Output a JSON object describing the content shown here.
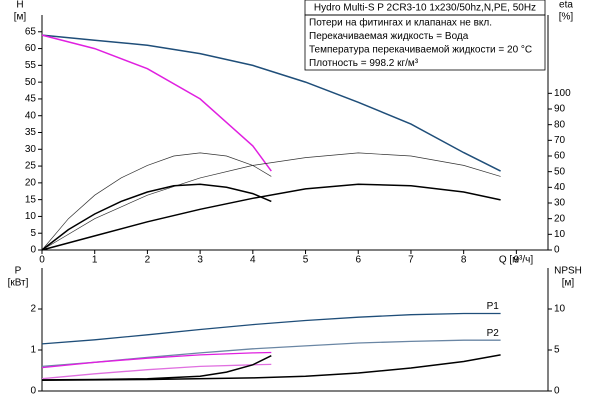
{
  "chart_data": [
    {
      "type": "line",
      "title": "Hydro Multi-S P 2CR3-10 1x230/50hz,N,PE, 50Hz",
      "notes": [
        "Потери на фитингах и клапанах не вкл.",
        "Перекачиваемая жидкость = Вода",
        "Температура перекачиваемой жидкости = 20 °C",
        "Плотность = 998.2 кг/м³"
      ],
      "ylabel": "H",
      "yunit": "[м]",
      "y2label": "eta",
      "y2unit": "[%]",
      "xlabel": "Q [м³/ч]",
      "xlim": [
        0,
        9.6
      ],
      "xticks": [
        0,
        1,
        2,
        3,
        4,
        5,
        6,
        7,
        8,
        9
      ],
      "ylim": [
        0,
        70
      ],
      "yticks": [
        0,
        5,
        10,
        15,
        20,
        25,
        30,
        35,
        40,
        45,
        50,
        55,
        60,
        65
      ],
      "y2lim": [
        0,
        150
      ],
      "y2ticks": [
        0,
        10,
        20,
        30,
        40,
        50,
        60,
        70,
        80,
        90,
        100
      ],
      "series": [
        {
          "color": "#1f4e79",
          "width": 1.5,
          "x": [
            0,
            1,
            2,
            3,
            4,
            5,
            6,
            7,
            8,
            8.7
          ],
          "values": [
            64,
            62.5,
            61,
            58.5,
            55,
            50,
            44,
            37.5,
            29,
            23.5
          ]
        },
        {
          "color": "#e020e0",
          "width": 1.5,
          "x": [
            0,
            1,
            2,
            3,
            4,
            4.35
          ],
          "values": [
            64,
            60,
            54,
            45,
            31,
            23.5
          ]
        },
        {
          "color": "#333333",
          "width": 0.7,
          "axis": "y2",
          "x": [
            0,
            1,
            2,
            3,
            4,
            5,
            6,
            7,
            8,
            8.7
          ],
          "values": [
            0,
            20,
            35,
            46,
            54,
            59,
            62,
            60,
            54,
            47
          ]
        },
        {
          "color": "#333333",
          "width": 0.7,
          "axis": "y2",
          "x": [
            0,
            0.5,
            1,
            1.5,
            2,
            2.5,
            3,
            3.5,
            4,
            4.35
          ],
          "values": [
            0,
            20,
            35,
            46,
            54,
            60,
            62,
            60,
            54,
            47
          ]
        },
        {
          "color": "#000000",
          "width": 1.5,
          "axis": "y2",
          "x": [
            0,
            1,
            2,
            3,
            4,
            5,
            6,
            7,
            8,
            8.7
          ],
          "values": [
            0,
            9,
            18,
            26,
            33,
            39,
            42,
            41,
            37,
            32
          ]
        },
        {
          "color": "#000000",
          "width": 1.5,
          "axis": "y2",
          "x": [
            0,
            0.5,
            1,
            1.5,
            2,
            2.5,
            3,
            3.5,
            4,
            4.35
          ],
          "values": [
            0,
            13,
            23,
            31,
            37,
            41,
            42,
            40,
            36,
            31
          ]
        }
      ]
    },
    {
      "type": "line",
      "ylabel": "P",
      "yunit": "[кВт]",
      "y2label": "NPSH",
      "y2unit": "[м]",
      "xlim": [
        0,
        9.6
      ],
      "ylim": [
        0,
        3
      ],
      "yticks": [
        0,
        1,
        2
      ],
      "y2lim": [
        0,
        15
      ],
      "y2ticks": [
        0,
        5,
        10
      ],
      "series": [
        {
          "name": "P1",
          "color": "#1f4e79",
          "width": 1.3,
          "x": [
            0,
            1,
            2,
            3,
            4,
            5,
            6,
            7,
            8,
            8.7
          ],
          "values": [
            1.15,
            1.25,
            1.37,
            1.5,
            1.62,
            1.72,
            1.8,
            1.86,
            1.89,
            1.89
          ]
        },
        {
          "name": "P2",
          "color": "#6a86a4",
          "width": 1.3,
          "x": [
            0,
            1,
            2,
            3,
            4,
            5,
            6,
            7,
            8,
            8.7
          ],
          "values": [
            0.6,
            0.7,
            0.82,
            0.93,
            1.03,
            1.1,
            1.17,
            1.21,
            1.24,
            1.24
          ]
        },
        {
          "color": "#e020e0",
          "width": 1.3,
          "x": [
            0,
            1,
            2,
            3,
            4,
            4.35
          ],
          "values": [
            0.57,
            0.7,
            0.8,
            0.88,
            0.93,
            0.94
          ]
        },
        {
          "color": "#e070e0",
          "width": 1.3,
          "x": [
            0,
            1,
            2,
            3,
            4,
            4.35
          ],
          "values": [
            0.3,
            0.42,
            0.52,
            0.6,
            0.64,
            0.65
          ]
        },
        {
          "color": "#000000",
          "width": 1.5,
          "axis": "y2",
          "x": [
            0,
            2,
            4,
            5,
            6,
            7,
            8,
            8.7
          ],
          "values": [
            1.3,
            1.4,
            1.6,
            1.8,
            2.2,
            2.8,
            3.6,
            4.4
          ]
        },
        {
          "color": "#000000",
          "width": 1.5,
          "axis": "y2",
          "x": [
            0,
            1,
            2,
            3,
            3.5,
            4,
            4.35
          ],
          "values": [
            1.35,
            1.4,
            1.5,
            1.8,
            2.3,
            3.2,
            4.3
          ]
        }
      ]
    }
  ]
}
